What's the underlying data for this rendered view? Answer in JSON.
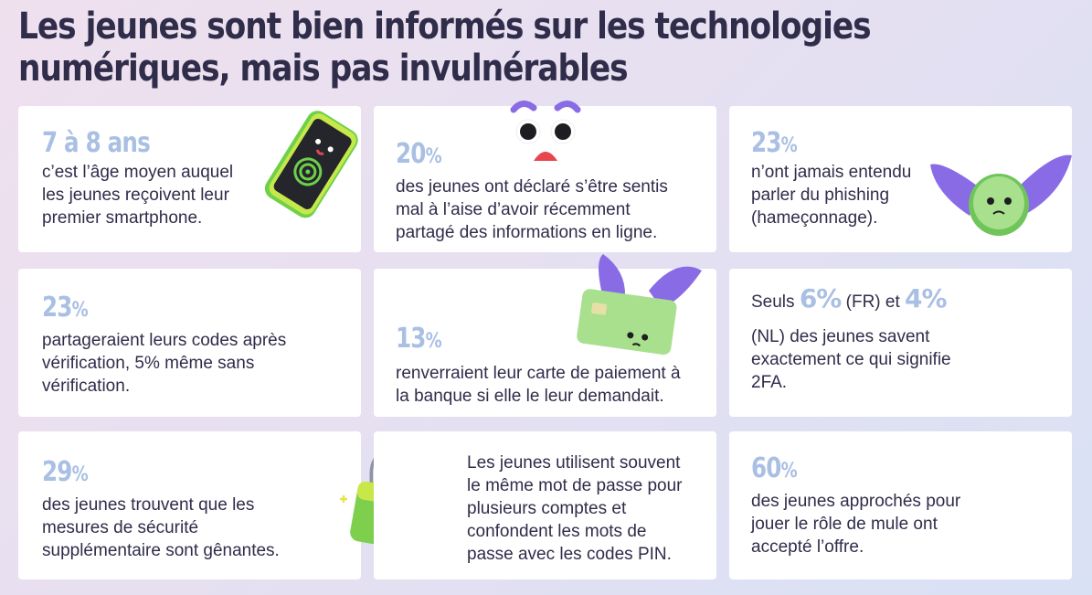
{
  "title": "Les jeunes sont bien informés sur les technologies numériques, mais pas invulnérables",
  "cards": [
    {
      "stat": "7 à 8 ans",
      "text": "c’est l’âge moyen auquel\nles jeunes reçoivent leur\npremier smartphone."
    },
    {
      "stat": "20",
      "unit": "%",
      "text": "des jeunes ont déclaré s’être sentis\nmal à l’aise d’avoir récemment\npartagé des informations en ligne."
    },
    {
      "stat": "23",
      "unit": "%",
      "text": "n’ont jamais entendu\nparler du phishing\n(hameçonnage)."
    },
    {
      "stat": "23",
      "unit": "%",
      "text": "partageraient leurs codes après\nvérification, 5% même sans\nvérification."
    },
    {
      "stat": "13",
      "unit": "%",
      "text": "renverraient leur carte de paiement à\nla banque si elle le leur demandait."
    },
    {
      "pre": "Seuls",
      "stat_a": "6%",
      "mid_a": "(FR)",
      "and": "et",
      "stat_b": "4%",
      "text": "(NL)  des jeunes savent\nexactement ce qui signifie\n2FA."
    },
    {
      "stat": "29",
      "unit": "%",
      "text": "des jeunes trouvent que les\nmesures de sécurité\nsupplémentaire sont gênantes."
    },
    {
      "text": "Les jeunes utilisent souvent\nle même mot de passe pour\nplusieurs comptes et\nconfondent les mots de\npasse avec les codes PIN."
    },
    {
      "stat": "60",
      "unit": "%",
      "text": "des jeunes approchés pour\njouer le rôle de mule ont\naccepté l’offre."
    }
  ],
  "colors": {
    "accent": "#a9bfe3",
    "text": "#2f2d4a",
    "card": "#ffffff",
    "green": "#8fd65b",
    "purple": "#8a6be6"
  }
}
